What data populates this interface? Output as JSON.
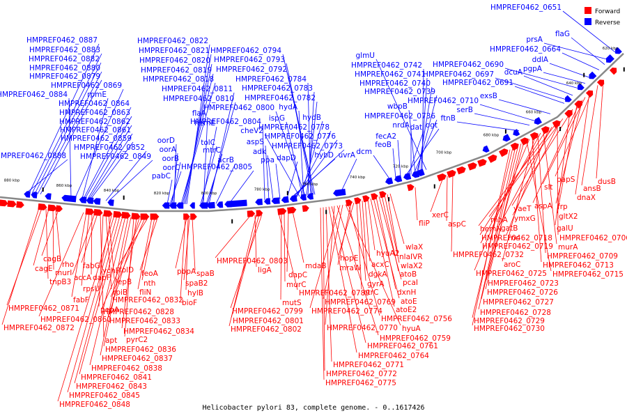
{
  "caption": "Helicobacter pylori 83, complete genome. - 0..1617426",
  "legend": [
    {
      "label": "Forward",
      "color": "#ff0000"
    },
    {
      "label": "Reverse",
      "color": "#0000ff"
    }
  ],
  "colors": {
    "forward": "#ff0000",
    "reverse": "#0000ff",
    "backbone": "#888888",
    "rna": "#000000"
  },
  "ticks": [
    "880 kbp",
    "860 kbp",
    "840 kbp",
    "820 kbp",
    "800 kbp",
    "780 kbp",
    "760 kbp",
    "740 kbp",
    "720 kbp",
    "700 kbp",
    "680 kbp",
    "660 kbp",
    "640 kbp",
    "620 kbp"
  ],
  "reverse_labels": [
    "HMPREF0462_0651",
    "prsA",
    "flaG",
    "HMPREF0462_0664",
    "ddlA",
    "pgpA",
    "HMPREF0462_0690",
    "dcuA",
    "HMPREF0462_0697",
    "HMPREF0462_0691",
    "exsB",
    "HMPREF0462_0710",
    "serB",
    "ftnB",
    "glmU",
    "HMPREF0462_0742",
    "HMPREF0462_0741",
    "HMPREF0462_0740",
    "HMPREF0462_0739",
    "wbpB",
    "HMPREF0462_0736",
    "nrdA",
    "dat",
    "ogt",
    "fecA2",
    "feoB",
    "dcm",
    "uvrA",
    "HMPREF0462_0794",
    "HMPREF0462_0793",
    "HMPREF0462_0792",
    "HMPREF0462_0784",
    "HMPREF0462_0783",
    "HMPREF0462_0782",
    "HMPREF0462_0800",
    "hydA",
    "ispG",
    "hydB",
    "cheV2",
    "HMPREF0462_0778",
    "HMPREF0462_0776",
    "HMPREF0462_0773",
    "hybD",
    "dapD",
    "ppa",
    "adk",
    "aspS",
    "HMPREF0462_0804",
    "HMPREF0462_0822",
    "HMPREF0462_0821",
    "HMPREF0462_0820",
    "HMPREF0462_0819",
    "HMPREF0462_0818",
    "HMPREF0462_0811",
    "HMPREF0462_0810",
    "flaA",
    "hemE",
    "tolC",
    "mtrC",
    "acrB",
    "HMPREF0462_0805",
    "oorD",
    "oorA",
    "oorB",
    "oorC",
    "pabC",
    "HMPREF0462_0887",
    "HMPREF0462_0883",
    "HMPREF0462_0882",
    "HMPREF0462_0880",
    "HMPREF0462_0879",
    "HMPREF0462_0869",
    "HMPREF0462_0884",
    "rpmE",
    "HMPREF0462_0864",
    "HMPREF0462_0863",
    "HMPREF0462_0862",
    "HMPREF0462_0861",
    "HMPREF0462_0859",
    "HMPREF0462_0852",
    "HMPREF0462_0849",
    "HMPREF0462_0888"
  ],
  "forward_labels": [
    "dusB",
    "ansB",
    "papS",
    "dnaX",
    "slt",
    "frp",
    "aspA",
    "gltX2",
    "yaeT",
    "galU",
    "rnhA",
    "ymxG",
    "HMPREF0462_0706",
    "hemN",
    "gatB",
    "rnc",
    "HMPREF0462_0718",
    "murA",
    "HMPREF0462_0719",
    "HMPREF0462_0709",
    "aroC",
    "HMPREF0462_0713",
    "HMPREF0462_0725",
    "HMPREF0462_0715",
    "HMPREF0462_0723",
    "HMPREF0462_0726",
    "HMPREF0462_0727",
    "HMPREF0462_0728",
    "HMPREF0462_0729",
    "HMPREF0462_0730",
    "xerC",
    "aspC",
    "HMPREF0462_0732",
    "fliP",
    "wlaX",
    "nlaIVR",
    "wlaX2",
    "atoB",
    "pcaI",
    "dxnH",
    "atoE",
    "atoE2",
    "hyuA2",
    "acxC",
    "dgkA",
    "gyrA",
    "ntrC",
    "hopE",
    "mraW",
    "HMPREF0462_0756",
    "hyuA",
    "HMPREF0462_0769",
    "HMPREF0462_0774",
    "HMPREF0462_0759",
    "HMPREF0462_0770",
    "HMPREF0462_0761",
    "HMPREF0462_0764",
    "HMPREF0462_0771",
    "HMPREF0462_0772",
    "HMPREF0462_0775",
    "HMPREF0462_0803",
    "ligA",
    "mdaB",
    "dapC",
    "murC",
    "mutS",
    "HMPREF0462_0789",
    "HMPREF0462_0799",
    "HMPREF0462_0801",
    "HMPREF0462_0802",
    "pbpA",
    "spaB",
    "spaB2",
    "hylB",
    "bioF",
    "feoA",
    "nth",
    "fliN",
    "folD",
    "HMPREF0462_0832",
    "HMPREF0462_0828",
    "HMPREF0462_0833",
    "HMPREF0462_0834",
    "pyrC2",
    "HMPREF0462_0836",
    "HMPREF0462_0837",
    "HMPREF0462_0838",
    "HMPREF0462_0841",
    "HMPREF0462_0843",
    "HMPREF0462_0845",
    "HMPREF0462_0848",
    "ychF",
    "lepB",
    "rpiB",
    "pepA",
    "apt",
    "fabG",
    "accA",
    "dapF",
    "rpsU",
    "fabF",
    "HMPREF0462_0860",
    "cagB",
    "rho",
    "murI",
    "cagE",
    "tnpB3",
    "HMPREF0462_0871",
    "HMPREF0462_0872"
  ]
}
